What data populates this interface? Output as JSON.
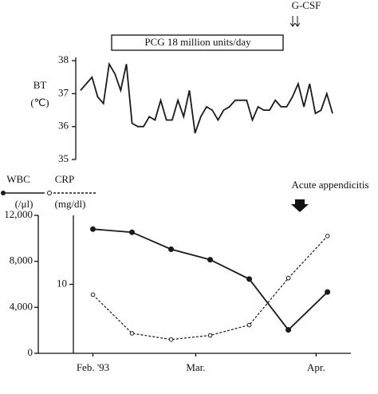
{
  "chart_data": [
    {
      "type": "line",
      "y_label": "BT",
      "y_unit": "(℃)",
      "annotation": "PCG 18 million units/day",
      "marker_label": "G-CSF",
      "color": "#1a1a1a",
      "values": [
        37.1,
        37.3,
        37.5,
        36.9,
        36.7,
        37.9,
        37.6,
        37.1,
        37.9,
        36.1,
        36.0,
        36.0,
        36.3,
        36.2,
        36.8,
        36.2,
        36.2,
        36.8,
        36.3,
        37.1,
        35.8,
        36.3,
        36.6,
        36.5,
        36.2,
        36.5,
        36.6,
        36.8,
        36.8,
        36.8,
        36.2,
        36.6,
        36.5,
        36.5,
        36.8,
        36.6,
        36.6,
        36.9,
        37.3,
        36.6,
        37.3,
        36.4,
        36.5,
        37.0,
        36.4
      ],
      "ylim": [
        35,
        38.1
      ],
      "yticks": [
        35,
        36,
        37,
        38
      ]
    },
    {
      "type": "line",
      "annotation": "Acute appendicitis",
      "x": [
        0,
        1,
        2,
        3,
        4,
        5,
        6
      ],
      "xlim": [
        -0.5,
        6.6
      ],
      "xticks": [
        {
          "value": 0,
          "label": "Feb. '93"
        },
        {
          "value": 2.63,
          "label": "Mar."
        },
        {
          "value": 5.71,
          "label": "Apr."
        }
      ],
      "ylim": [
        0,
        12000
      ],
      "yticks": [
        0,
        {
          "value": 4000,
          "label": "4,000"
        },
        {
          "value": 8000,
          "label": "8,000"
        },
        {
          "value": 12000,
          "label": "12,000"
        }
      ],
      "y2lim": [
        0,
        20
      ],
      "y2ticks": [
        10
      ],
      "series": [
        {
          "name": "WBC",
          "unit": "(/μl)",
          "color": "#1a1a1a",
          "dashed": false,
          "values": [
            10800,
            10530,
            9050,
            8140,
            6460,
            2040,
            5330
          ]
        },
        {
          "name": "CRP",
          "unit": "(mg/dl)",
          "color": "#1a1a1a",
          "dashed": true,
          "axis": "y2",
          "values": [
            8.5,
            2.9,
            2.0,
            2.6,
            4.1,
            10.9,
            17.0
          ]
        }
      ]
    }
  ]
}
